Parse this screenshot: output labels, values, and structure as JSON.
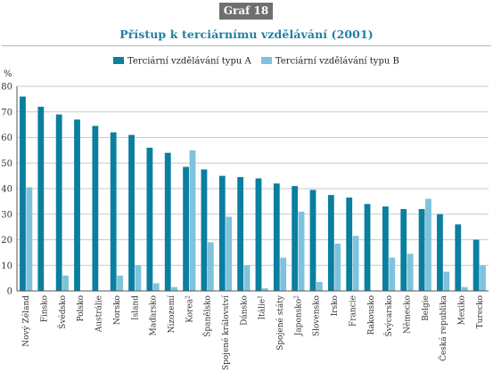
{
  "header": {
    "badge": "Graf 18",
    "title": "Přístup k terciárnímu vzdělávání (2001)"
  },
  "colors": {
    "series_a": "#0a7f9f",
    "series_b": "#7fc2dc",
    "title": "#1f7fa0",
    "badge_bg": "#6f6f6f",
    "grid": "#c9c9c9",
    "axis": "#555555"
  },
  "chart_data": {
    "type": "bar",
    "title": "Přístup k terciárnímu vzdělávání (2001)",
    "ylabel": "%",
    "xlabel": "",
    "ylim": [
      0,
      80
    ],
    "yticks": [
      0,
      10,
      20,
      30,
      40,
      50,
      60,
      70,
      80
    ],
    "grid": true,
    "legend_position": "top",
    "categories": [
      {
        "label": "Nový Zéland",
        "sup": ""
      },
      {
        "label": "Finsko",
        "sup": ""
      },
      {
        "label": "Švédsko",
        "sup": ""
      },
      {
        "label": "Polsko",
        "sup": ""
      },
      {
        "label": "Austrálie",
        "sup": ""
      },
      {
        "label": "Norsko",
        "sup": ""
      },
      {
        "label": "Island",
        "sup": ""
      },
      {
        "label": "Maďarsko",
        "sup": ""
      },
      {
        "label": "Nizozemí",
        "sup": ""
      },
      {
        "label": "Korea",
        "sup": "2"
      },
      {
        "label": "Španělsko",
        "sup": ""
      },
      {
        "label": "Spojené království",
        "sup": ""
      },
      {
        "label": "Dánsko",
        "sup": ""
      },
      {
        "label": "Itálie",
        "sup": "1"
      },
      {
        "label": "Spojené státy",
        "sup": ""
      },
      {
        "label": "Japonsko",
        "sup": "2"
      },
      {
        "label": "Slovensko",
        "sup": ""
      },
      {
        "label": "Irsko",
        "sup": ""
      },
      {
        "label": "Francie",
        "sup": ""
      },
      {
        "label": "Rakousko",
        "sup": ""
      },
      {
        "label": "Švýcarsko",
        "sup": ""
      },
      {
        "label": "Německo",
        "sup": ""
      },
      {
        "label": "Belgie",
        "sup": ""
      },
      {
        "label": "Česká republika",
        "sup": ""
      },
      {
        "label": "Mexiko",
        "sup": ""
      },
      {
        "label": "Turecko",
        "sup": ""
      }
    ],
    "series": [
      {
        "name": "Terciární vzdělávání typu A",
        "values": [
          76,
          72,
          69,
          67,
          64.5,
          62,
          61,
          56,
          54,
          48.5,
          47.5,
          45,
          44.5,
          44,
          42,
          41,
          39.5,
          37.5,
          36.5,
          34,
          33,
          32,
          32,
          30,
          26,
          20
        ]
      },
      {
        "name": "Terciární vzdělávání typu B",
        "values": [
          40.5,
          0,
          6,
          0,
          0,
          6,
          10,
          3,
          1.5,
          55,
          19,
          29,
          10,
          1,
          13,
          31,
          3.5,
          18.5,
          21.5,
          0,
          13,
          14.5,
          36,
          7.5,
          1.5,
          10
        ]
      }
    ]
  }
}
